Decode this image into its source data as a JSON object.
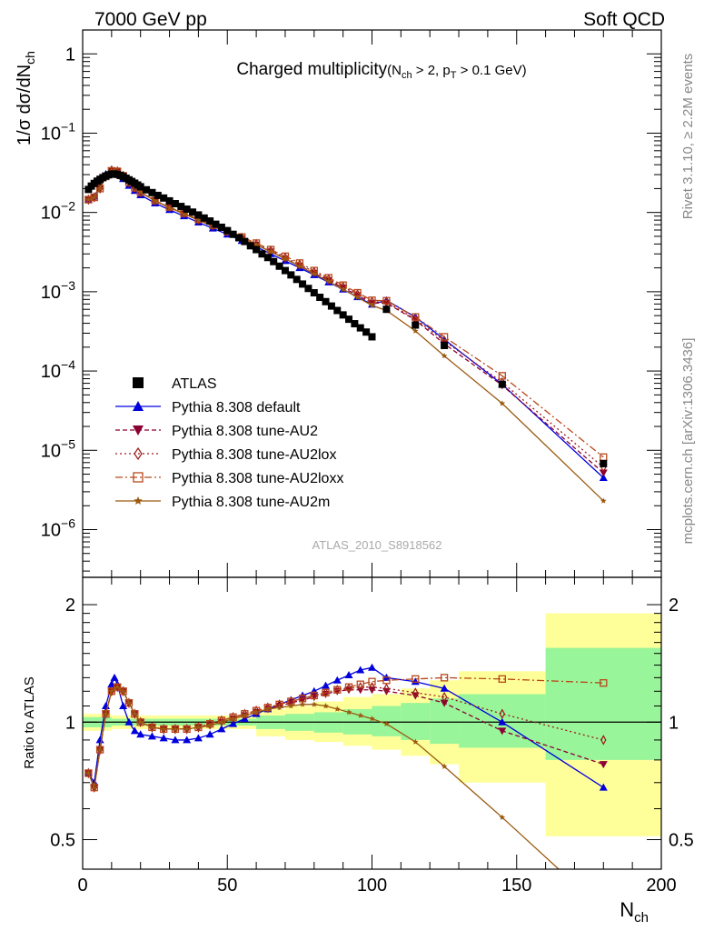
{
  "header": {
    "left": "7000 GeV pp",
    "right": "Soft QCD"
  },
  "side_labels": {
    "rivet": "Rivet 3.1.10, ≥ 2.2M events",
    "mcplots": "mcplots.cern.ch [arXiv:1306.3436]"
  },
  "colors": {
    "ATLAS": "#000000",
    "default": "#0000dd",
    "AU2": "#8b0033",
    "AU2lox": "#9b1a1a",
    "AU2loxx": "#b8471a",
    "AU2m": "#9a5a10",
    "band_inner": "#99f599",
    "band_outer": "#ffff99"
  },
  "chart_data": [
    {
      "type": "scatter",
      "panel": "main",
      "title_main": "Charged multiplicity",
      "title_cut": "(N",
      "title_cut_sub": "ch",
      "title_cut_rest": " > 2, p",
      "title_cut_sub2": "T",
      "title_cut_rest2": " > 0.1 GeV)",
      "ylabel": "1/σ dσ/dN",
      "ylabel_sub": "ch",
      "yscale": "log",
      "ylim": [
        2.5e-07,
        2.0
      ],
      "xlim": [
        0,
        200
      ],
      "analysis_tag": "ATLAS_2010_S8918562",
      "y_tick_labels": [
        {
          "v": 1,
          "base": "1",
          "exp": ""
        },
        {
          "v": 0.1,
          "base": "10",
          "exp": "−1"
        },
        {
          "v": 0.01,
          "base": "10",
          "exp": "−2"
        },
        {
          "v": 0.001,
          "base": "10",
          "exp": "−3"
        },
        {
          "v": 0.0001,
          "base": "10",
          "exp": "−4"
        },
        {
          "v": 1e-05,
          "base": "10",
          "exp": "−5"
        },
        {
          "v": 1e-06,
          "base": "10",
          "exp": "−6"
        }
      ],
      "legend": [
        {
          "key": "ATLAS",
          "label": "ATLAS"
        },
        {
          "key": "default",
          "label": "Pythia 8.308 default"
        },
        {
          "key": "AU2",
          "label": "Pythia 8.308 tune-AU2"
        },
        {
          "key": "AU2lox",
          "label": "Pythia 8.308 tune-AU2lox"
        },
        {
          "key": "AU2loxx",
          "label": "Pythia 8.308 tune-AU2loxx"
        },
        {
          "key": "AU2m",
          "label": "Pythia 8.308 tune-AU2m"
        }
      ],
      "series": {
        "ATLAS": {
          "x": [
            2,
            3,
            4,
            5,
            6,
            7,
            8,
            9,
            10,
            11,
            12,
            13,
            14,
            15,
            16,
            17,
            18,
            19,
            20,
            22,
            24,
            26,
            28,
            30,
            32,
            34,
            36,
            38,
            40,
            42,
            44,
            46,
            48,
            50,
            52,
            54,
            56,
            58,
            60,
            62,
            64,
            66,
            68,
            70,
            72,
            74,
            76,
            78,
            80,
            82,
            84,
            86,
            88,
            90,
            92,
            94,
            96,
            98,
            100,
            105,
            115,
            125,
            145,
            180
          ],
          "y": [
            0.0195,
            0.0215,
            0.0232,
            0.0248,
            0.0262,
            0.0275,
            0.0288,
            0.0298,
            0.0305,
            0.0306,
            0.0302,
            0.0293,
            0.0283,
            0.027,
            0.0258,
            0.0246,
            0.0234,
            0.0222,
            0.0211,
            0.0193,
            0.0178,
            0.0164,
            0.0152,
            0.014,
            0.0129,
            0.0119,
            0.011,
            0.0101,
            0.0093,
            0.0085,
            0.0078,
            0.0071,
            0.0065,
            0.0059,
            0.0053,
            0.0048,
            0.0043,
            0.0038,
            0.0034,
            0.003,
            0.0027,
            0.0024,
            0.0021,
            0.00185,
            0.00163,
            0.00143,
            0.00125,
            0.0011,
            0.00097,
            0.00085,
            0.00075,
            0.00066,
            0.00058,
            0.00051,
            0.00045,
            0.000395,
            0.00035,
            0.00031,
            0.00027,
            0.0006,
            0.00038,
            0.00021,
            6.8e-05,
            6.8e-06
          ]
        },
        "default": {
          "x": [
            2,
            4,
            6,
            8,
            10,
            12,
            14,
            16,
            18,
            20,
            25,
            30,
            35,
            40,
            45,
            50,
            55,
            60,
            65,
            70,
            75,
            80,
            85,
            90,
            95,
            100,
            105,
            115,
            125,
            145,
            180
          ],
          "y": [
            0.0145,
            0.016,
            0.0215,
            0.0305,
            0.035,
            0.032,
            0.0265,
            0.0218,
            0.0188,
            0.0166,
            0.0131,
            0.0108,
            0.009,
            0.0075,
            0.0063,
            0.0053,
            0.0044,
            0.0037,
            0.003,
            0.00245,
            0.002,
            0.00163,
            0.00132,
            0.00107,
            0.00086,
            0.00069,
            0.00078,
            0.00048,
            0.00025,
            6.8e-05,
            4.5e-06
          ]
        },
        "AU2": {
          "x": [
            2,
            4,
            6,
            8,
            10,
            12,
            14,
            16,
            18,
            20,
            25,
            30,
            35,
            40,
            45,
            50,
            55,
            60,
            65,
            70,
            75,
            80,
            85,
            90,
            95,
            100,
            105,
            115,
            125,
            145,
            180
          ],
          "y": [
            0.0145,
            0.0155,
            0.02,
            0.0285,
            0.0335,
            0.033,
            0.029,
            0.024,
            0.0205,
            0.018,
            0.014,
            0.0115,
            0.0096,
            0.008,
            0.0067,
            0.0056,
            0.0047,
            0.0039,
            0.0032,
            0.0026,
            0.00212,
            0.00172,
            0.00139,
            0.00112,
            0.0009,
            0.00072,
            0.00072,
            0.00044,
            0.00022,
            6.6e-05,
            5.2e-06
          ]
        },
        "AU2lox": {
          "x": [
            2,
            4,
            6,
            8,
            10,
            12,
            14,
            16,
            18,
            20,
            25,
            30,
            35,
            40,
            45,
            50,
            55,
            60,
            65,
            70,
            75,
            80,
            85,
            90,
            95,
            100,
            105,
            115,
            125,
            145,
            180
          ],
          "y": [
            0.0145,
            0.0155,
            0.02,
            0.0285,
            0.0335,
            0.033,
            0.029,
            0.024,
            0.0205,
            0.018,
            0.0141,
            0.0116,
            0.0097,
            0.0081,
            0.0068,
            0.0057,
            0.0048,
            0.004,
            0.0033,
            0.0027,
            0.0022,
            0.00178,
            0.00144,
            0.00116,
            0.00093,
            0.00075,
            0.00074,
            0.00045,
            0.00024,
            7.2e-05,
            6.1e-06
          ]
        },
        "AU2loxx": {
          "x": [
            2,
            4,
            6,
            8,
            10,
            12,
            14,
            16,
            18,
            20,
            25,
            30,
            35,
            40,
            45,
            50,
            55,
            60,
            65,
            70,
            75,
            80,
            85,
            90,
            95,
            100,
            105,
            115,
            125,
            145,
            180
          ],
          "y": [
            0.0145,
            0.0155,
            0.02,
            0.0285,
            0.0335,
            0.033,
            0.029,
            0.024,
            0.0205,
            0.018,
            0.0142,
            0.0117,
            0.0098,
            0.0082,
            0.0069,
            0.0058,
            0.0049,
            0.0041,
            0.0034,
            0.0028,
            0.0023,
            0.00185,
            0.0015,
            0.00121,
            0.00097,
            0.00078,
            0.00077,
            0.00048,
            0.00027,
            8.7e-05,
            8.2e-06
          ]
        },
        "AU2m": {
          "x": [
            2,
            4,
            6,
            8,
            10,
            12,
            14,
            16,
            18,
            20,
            25,
            30,
            35,
            40,
            45,
            50,
            55,
            60,
            65,
            70,
            75,
            80,
            85,
            90,
            95,
            100,
            105,
            115,
            125,
            145,
            180
          ],
          "y": [
            0.0145,
            0.0155,
            0.02,
            0.0285,
            0.0335,
            0.033,
            0.029,
            0.024,
            0.0205,
            0.018,
            0.014,
            0.0115,
            0.0096,
            0.008,
            0.0067,
            0.0056,
            0.0047,
            0.0039,
            0.0032,
            0.0026,
            0.0021,
            0.00168,
            0.00135,
            0.00107,
            0.00085,
            0.00067,
            0.00058,
            0.00032,
            0.000155,
            3.9e-05,
            2.3e-06
          ]
        }
      }
    },
    {
      "type": "line",
      "panel": "ratio",
      "ylabel": "Ratio to ATLAS",
      "xlabel": "N",
      "xlabel_sub": "ch",
      "yscale": "log",
      "ylim": [
        0.42,
        2.35
      ],
      "xlim": [
        0,
        200
      ],
      "x_tick_labels": [
        "0",
        "50",
        "100",
        "150",
        "200"
      ],
      "y_tick_labels": [
        "0.5",
        "1",
        "2"
      ],
      "band_bins": [
        {
          "x0": 0,
          "x1": 10,
          "inner": [
            0.97,
            1.03
          ],
          "outer": [
            0.95,
            1.05
          ]
        },
        {
          "x0": 10,
          "x1": 60,
          "inner": [
            0.98,
            1.02
          ],
          "outer": [
            0.96,
            1.04
          ]
        },
        {
          "x0": 60,
          "x1": 70,
          "inner": [
            0.96,
            1.04
          ],
          "outer": [
            0.92,
            1.08
          ]
        },
        {
          "x0": 70,
          "x1": 80,
          "inner": [
            0.95,
            1.05
          ],
          "outer": [
            0.9,
            1.1
          ]
        },
        {
          "x0": 80,
          "x1": 90,
          "inner": [
            0.94,
            1.06
          ],
          "outer": [
            0.89,
            1.13
          ]
        },
        {
          "x0": 90,
          "x1": 100,
          "inner": [
            0.93,
            1.08
          ],
          "outer": [
            0.87,
            1.16
          ]
        },
        {
          "x0": 100,
          "x1": 110,
          "inner": [
            0.92,
            1.1
          ],
          "outer": [
            0.85,
            1.18
          ]
        },
        {
          "x0": 110,
          "x1": 120,
          "inner": [
            0.9,
            1.12
          ],
          "outer": [
            0.82,
            1.22
          ]
        },
        {
          "x0": 120,
          "x1": 130,
          "inner": [
            0.88,
            1.15
          ],
          "outer": [
            0.78,
            1.28
          ]
        },
        {
          "x0": 130,
          "x1": 160,
          "inner": [
            0.86,
            1.18
          ],
          "outer": [
            0.7,
            1.35
          ]
        },
        {
          "x0": 160,
          "x1": 200,
          "inner": [
            0.8,
            1.55
          ],
          "outer": [
            0.51,
            1.9
          ]
        }
      ],
      "series": {
        "default": {
          "x": [
            2,
            4,
            6,
            8,
            10,
            11,
            12,
            14,
            16,
            18,
            20,
            24,
            28,
            32,
            36,
            40,
            44,
            48,
            52,
            56,
            60,
            64,
            68,
            72,
            76,
            80,
            84,
            88,
            92,
            96,
            100,
            105,
            115,
            125,
            145,
            180
          ],
          "y": [
            0.74,
            0.7,
            0.9,
            1.1,
            1.25,
            1.3,
            1.25,
            1.1,
            1.0,
            0.95,
            0.93,
            0.92,
            0.91,
            0.9,
            0.9,
            0.91,
            0.93,
            0.96,
            0.99,
            1.02,
            1.05,
            1.08,
            1.11,
            1.14,
            1.17,
            1.2,
            1.24,
            1.28,
            1.32,
            1.36,
            1.38,
            1.3,
            1.27,
            1.22,
            1.0,
            0.68
          ]
        },
        "AU2": {
          "x": [
            2,
            4,
            6,
            8,
            10,
            12,
            14,
            16,
            18,
            20,
            24,
            28,
            32,
            36,
            40,
            44,
            48,
            52,
            56,
            60,
            64,
            68,
            72,
            76,
            80,
            84,
            88,
            92,
            96,
            100,
            105,
            115,
            125,
            145,
            180
          ],
          "y": [
            0.74,
            0.68,
            0.85,
            1.05,
            1.2,
            1.23,
            1.2,
            1.12,
            1.05,
            1.0,
            0.97,
            0.96,
            0.96,
            0.96,
            0.97,
            0.98,
            1.0,
            1.02,
            1.04,
            1.06,
            1.08,
            1.1,
            1.12,
            1.14,
            1.16,
            1.18,
            1.2,
            1.21,
            1.21,
            1.21,
            1.2,
            1.17,
            1.12,
            0.95,
            0.78
          ]
        },
        "AU2lox": {
          "x": [
            2,
            4,
            6,
            8,
            10,
            12,
            14,
            16,
            18,
            20,
            24,
            28,
            32,
            36,
            40,
            44,
            48,
            52,
            56,
            60,
            64,
            68,
            72,
            76,
            80,
            84,
            88,
            92,
            96,
            100,
            105,
            115,
            125,
            145,
            180
          ],
          "y": [
            0.74,
            0.68,
            0.85,
            1.05,
            1.2,
            1.23,
            1.2,
            1.12,
            1.05,
            1.0,
            0.97,
            0.96,
            0.96,
            0.96,
            0.97,
            0.99,
            1.01,
            1.03,
            1.05,
            1.07,
            1.09,
            1.11,
            1.13,
            1.15,
            1.17,
            1.19,
            1.21,
            1.22,
            1.23,
            1.23,
            1.22,
            1.19,
            1.16,
            1.05,
            0.9
          ]
        },
        "AU2loxx": {
          "x": [
            2,
            4,
            6,
            8,
            10,
            12,
            14,
            16,
            18,
            20,
            24,
            28,
            32,
            36,
            40,
            44,
            48,
            52,
            56,
            60,
            64,
            68,
            72,
            76,
            80,
            84,
            88,
            92,
            96,
            100,
            105,
            115,
            125,
            145,
            180
          ],
          "y": [
            0.74,
            0.68,
            0.85,
            1.05,
            1.2,
            1.23,
            1.2,
            1.12,
            1.05,
            1.0,
            0.97,
            0.96,
            0.96,
            0.96,
            0.97,
            0.99,
            1.01,
            1.03,
            1.05,
            1.07,
            1.09,
            1.11,
            1.13,
            1.15,
            1.17,
            1.19,
            1.21,
            1.23,
            1.25,
            1.27,
            1.28,
            1.29,
            1.3,
            1.29,
            1.26
          ]
        },
        "AU2m": {
          "x": [
            2,
            4,
            6,
            8,
            10,
            12,
            14,
            16,
            18,
            20,
            24,
            28,
            32,
            36,
            40,
            44,
            48,
            52,
            56,
            60,
            64,
            68,
            72,
            76,
            80,
            84,
            88,
            92,
            96,
            100,
            105,
            115,
            125,
            145,
            180
          ],
          "y": [
            0.74,
            0.68,
            0.85,
            1.05,
            1.2,
            1.23,
            1.2,
            1.12,
            1.05,
            1.0,
            0.97,
            0.96,
            0.96,
            0.96,
            0.97,
            0.98,
            1.0,
            1.02,
            1.04,
            1.06,
            1.08,
            1.09,
            1.1,
            1.11,
            1.11,
            1.1,
            1.08,
            1.06,
            1.04,
            1.02,
            0.99,
            0.89,
            0.77,
            0.57,
            0.33
          ]
        }
      }
    }
  ]
}
